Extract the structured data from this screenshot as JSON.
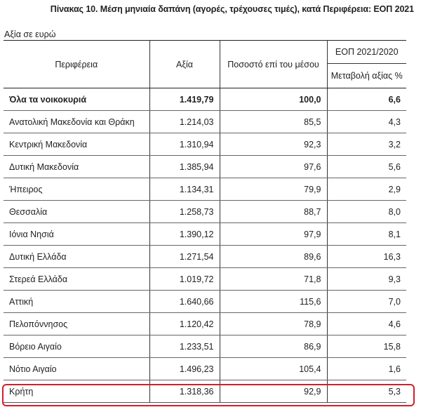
{
  "title": "Πίνακας 10. Μέση μηνιαία δαπάνη (αγορές, τρέχουσες τιμές), κατά Περιφέρεια: ΕΟΠ 2021",
  "unit_label": "Αξία σε ευρώ",
  "table": {
    "headers": {
      "region": "Περιφέρεια",
      "value": "Αξία",
      "pct_of_mean": "Ποσοστό επί του μέσου",
      "group": "ΕΟΠ 2021/2020",
      "change": "Μεταβολή  αξίας %"
    },
    "rows": [
      {
        "region": "Όλα τα νοικοκυριά",
        "value": "1.419,79",
        "pct_of_mean": "100,0",
        "change": "6,6",
        "bold": true
      },
      {
        "region": "Ανατολική Μακεδονία και Θράκη",
        "value": "1.214,03",
        "pct_of_mean": "85,5",
        "change": "4,3"
      },
      {
        "region": "Κεντρική Μακεδονία",
        "value": "1.310,94",
        "pct_of_mean": "92,3",
        "change": "3,2"
      },
      {
        "region": "Δυτική Μακεδονία",
        "value": "1.385,94",
        "pct_of_mean": "97,6",
        "change": "5,6"
      },
      {
        "region": "Ήπειρος",
        "value": "1.134,31",
        "pct_of_mean": "79,9",
        "change": "2,9"
      },
      {
        "region": "Θεσσαλία",
        "value": "1.258,73",
        "pct_of_mean": "88,7",
        "change": "8,0"
      },
      {
        "region": "Ιόνια Νησιά",
        "value": "1.390,12",
        "pct_of_mean": "97,9",
        "change": "8,1"
      },
      {
        "region": "Δυτική Ελλάδα",
        "value": "1.271,54",
        "pct_of_mean": "89,6",
        "change": "16,3"
      },
      {
        "region": "Στερεά Ελλάδα",
        "value": "1.019,72",
        "pct_of_mean": "71,8",
        "change": "9,3"
      },
      {
        "region": "Αττική",
        "value": "1.640,66",
        "pct_of_mean": "115,6",
        "change": "7,0"
      },
      {
        "region": "Πελοπόννησος",
        "value": "1.120,42",
        "pct_of_mean": "78,9",
        "change": "4,6"
      },
      {
        "region": "Βόρειο Αιγαίο",
        "value": "1.233,51",
        "pct_of_mean": "86,9",
        "change": "15,8"
      },
      {
        "region": "Νότιο Αιγαίο",
        "value": "1.496,23",
        "pct_of_mean": "105,4",
        "change": "1,6"
      },
      {
        "region": "Κρήτη",
        "value": "1.318,36",
        "pct_of_mean": "92,9",
        "change": "5,3",
        "highlighted": true
      }
    ]
  },
  "highlight_color": "#d0202a"
}
